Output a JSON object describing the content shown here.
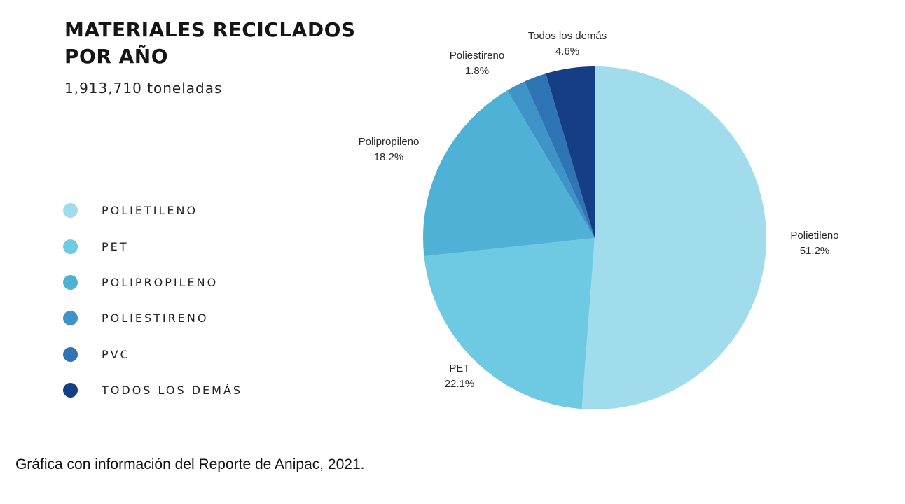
{
  "header": {
    "title_line1": "MATERIALES RECICLADOS",
    "title_line2": "POR AÑO",
    "subtitle": "1,913,710 toneladas"
  },
  "legend": [
    {
      "label": "POLIETILENO",
      "color": "#a1dced"
    },
    {
      "label": "PET",
      "color": "#6ecae3"
    },
    {
      "label": "POLIPROPILENO",
      "color": "#4fb1d6"
    },
    {
      "label": "POLIESTIRENO",
      "color": "#3e94c7"
    },
    {
      "label": "PVC",
      "color": "#2f74b5"
    },
    {
      "label": "TODOS LOS DEMÁS",
      "color": "#153e85"
    }
  ],
  "chart_data": {
    "type": "pie",
    "title": "MATERIALES RECICLADOS POR AÑO",
    "subtitle": "1,913,710 toneladas",
    "start": "top (12 o'clock), clockwise",
    "slices": [
      {
        "name": "Polietileno",
        "value": 51.2,
        "label": "51.2%",
        "color": "#a1dced",
        "show_label": true
      },
      {
        "name": "PET",
        "value": 22.1,
        "label": "22.1%",
        "color": "#6ecae3",
        "show_label": true
      },
      {
        "name": "Polipropileno",
        "value": 18.2,
        "label": "18.2%",
        "color": "#4fb1d6",
        "show_label": true
      },
      {
        "name": "Poliestireno",
        "value": 1.8,
        "label": "1.8%",
        "color": "#3e94c7",
        "show_label": true
      },
      {
        "name": "PVC",
        "value": 2.1,
        "label": "",
        "color": "#2f74b5",
        "show_label": false
      },
      {
        "name": "Todos los demás",
        "value": 4.6,
        "label": "4.6%",
        "color": "#153e85",
        "show_label": true
      }
    ]
  },
  "caption": "Gráfica con información del Reporte de Anipac, 2021."
}
